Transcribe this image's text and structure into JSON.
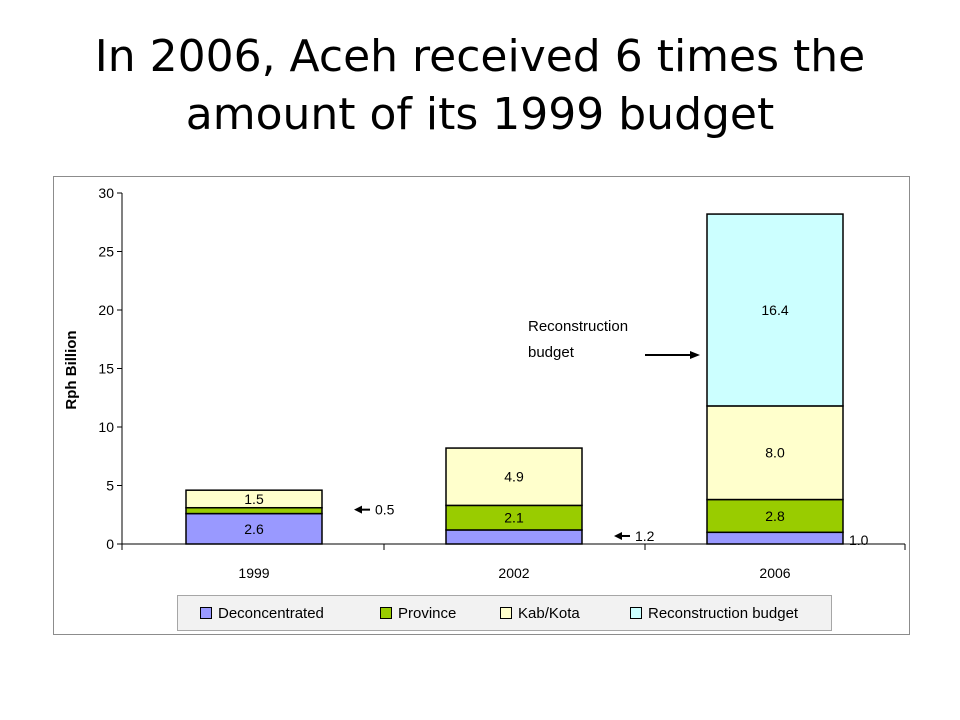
{
  "slide": {
    "title_line1": "In 2006, Aceh received 6 times the",
    "title_line2": "amount of its 1999 budget"
  },
  "chart_data": {
    "type": "bar",
    "stacked": true,
    "categories": [
      "1999",
      "2002",
      "2006"
    ],
    "ylabel": "Rph Billion",
    "xlabel": "",
    "ylim": [
      0,
      30
    ],
    "yticks": [
      0,
      5,
      10,
      15,
      20,
      25,
      30
    ],
    "grid": false,
    "legend_position": "bottom",
    "series": [
      {
        "name": "Deconcentrated",
        "color": "#9999ff",
        "values": [
          2.6,
          1.2,
          1.0
        ],
        "labels": [
          "2.6",
          "1.2",
          "1.0"
        ],
        "label_placement": [
          "inside",
          "outside-arrow",
          "outside"
        ]
      },
      {
        "name": "Province",
        "color": "#99cc00",
        "values": [
          0.5,
          2.1,
          2.8
        ],
        "labels": [
          "0.5",
          "2.1",
          "2.8"
        ],
        "label_placement": [
          "outside-arrow",
          "inside",
          "inside"
        ]
      },
      {
        "name": "Kab/Kota",
        "color": "#ffffcc",
        "values": [
          1.5,
          4.9,
          8.0
        ],
        "labels": [
          "1.5",
          "4.9",
          "8.0"
        ],
        "label_placement": [
          "inside",
          "inside",
          "inside"
        ]
      },
      {
        "name": "Reconstruction budget",
        "color": "#ccffff",
        "values": [
          0,
          0,
          16.4
        ],
        "labels": [
          "",
          "",
          "16.4"
        ],
        "label_placement": [
          "none",
          "none",
          "inside"
        ]
      }
    ],
    "annotations": [
      {
        "text_line1": "Reconstruction",
        "text_line2": "budget",
        "points_to": "Reconstruction budget, 2006"
      }
    ]
  }
}
